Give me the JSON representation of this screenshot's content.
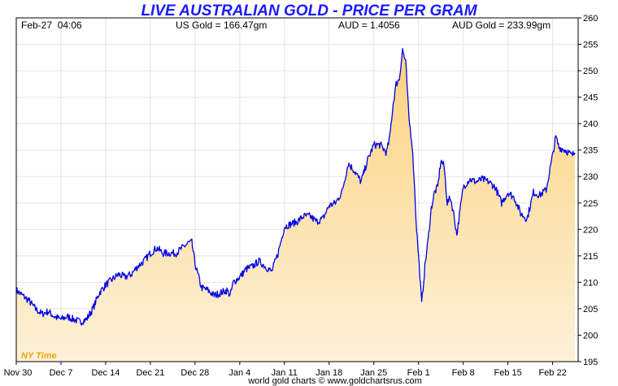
{
  "header": {
    "title": "LIVE AUSTRALIAN GOLD - PRICE PER GRAM",
    "datetime": "Feb-27  04:06",
    "us_gold": "US Gold = 166.47gm",
    "aud": "AUD = 1.4056",
    "aud_gold": "AUD Gold = 233.99gm"
  },
  "footer": {
    "timezone": "NY Time",
    "credit": "world gold charts © www.goldchartsrus.com"
  },
  "colors": {
    "line": "#0000e6",
    "title": "#1a1aff",
    "fill_top": "#fbd27e",
    "fill_bottom": "#fdf1d9",
    "timezone": "#f0a800"
  },
  "chart_data": {
    "type": "area",
    "title": "LIVE AUSTRALIAN GOLD - PRICE PER GRAM",
    "xlabel": "",
    "ylabel": "",
    "ylim": [
      195,
      260
    ],
    "yticks": [
      195,
      200,
      205,
      210,
      215,
      220,
      225,
      230,
      235,
      240,
      245,
      250,
      255,
      260
    ],
    "y_axis_position": "right",
    "grid": true,
    "x_start": "Nov 30",
    "x_end": "Feb 27",
    "xtick_labels": [
      "Nov 30",
      "Dec 7",
      "Dec 14",
      "Dec 21",
      "Dec 28",
      "Jan 4",
      "Jan 11",
      "Jan 18",
      "Jan 25",
      "Feb 1",
      "Feb 8",
      "Feb 15",
      "Feb 22"
    ],
    "xtick_days": [
      0,
      7,
      14,
      21,
      28,
      35,
      42,
      49,
      56,
      63,
      70,
      77,
      84
    ],
    "series": [
      {
        "x": [
          0,
          1,
          2,
          3,
          4,
          5,
          6,
          7,
          8,
          9,
          10,
          11,
          12,
          13,
          14,
          15,
          16,
          17,
          18,
          19,
          20,
          21,
          22,
          23,
          24,
          25,
          26,
          27,
          27.5,
          28,
          29,
          30,
          31,
          32,
          33,
          33.5,
          34,
          35,
          36,
          37,
          38,
          39,
          40,
          41,
          42,
          43,
          44,
          45,
          46,
          47,
          48,
          49,
          50,
          51,
          52,
          53,
          54,
          55,
          56,
          57,
          58,
          58.5,
          59,
          59.5,
          60,
          60.5,
          61,
          61.5,
          62,
          62.3,
          62.6,
          63,
          63.5,
          64,
          64.5,
          65,
          65.5,
          66,
          66.5,
          67,
          67.5,
          68,
          68.5,
          69,
          70,
          71,
          72,
          73,
          74,
          75,
          76,
          77,
          78,
          79,
          80,
          81,
          82,
          83,
          84,
          84.5,
          85,
          86,
          87,
          87.5
        ],
        "values": [
          208.5,
          207.5,
          206.5,
          205,
          204,
          204.5,
          203.5,
          203,
          203.5,
          203,
          202.5,
          203,
          205,
          208,
          209.5,
          210.5,
          211.5,
          211,
          211.5,
          213,
          214,
          215.5,
          216.5,
          215.5,
          215.5,
          215.5,
          216.5,
          217.5,
          217.5,
          213.5,
          209,
          208.5,
          207.5,
          208,
          208.5,
          207.5,
          210,
          211,
          212.5,
          213,
          214,
          213,
          212,
          215.5,
          220.5,
          221,
          221.5,
          222.5,
          222.5,
          221.5,
          222,
          224.5,
          225,
          227,
          232.5,
          231,
          229,
          233,
          236,
          236,
          234.5,
          237.5,
          243.5,
          247.5,
          248.5,
          254,
          251.5,
          241,
          236,
          230,
          222,
          215,
          206,
          213,
          218,
          224,
          227,
          228,
          233,
          232,
          225,
          226,
          223,
          219,
          228,
          229.5,
          229,
          229.5,
          229,
          228,
          225,
          227,
          226,
          223,
          222,
          227,
          226.5,
          227.5,
          234,
          237.5,
          235.5,
          235,
          234,
          234.5
        ]
      }
    ]
  }
}
